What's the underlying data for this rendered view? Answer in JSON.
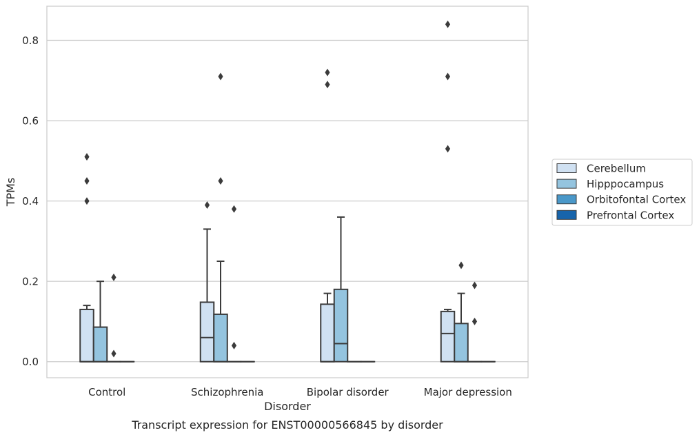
{
  "chart_data": {
    "type": "box",
    "title": "",
    "caption": "Transcript expression for ENST00000566845 by disorder",
    "xlabel": "Disorder",
    "ylabel": "TPMs",
    "ylim": [
      -0.04,
      0.885
    ],
    "yticks": [
      0.0,
      0.2,
      0.4,
      0.6,
      0.8
    ],
    "ytick_labels": [
      "0.0",
      "0.2",
      "0.4",
      "0.6",
      "0.8"
    ],
    "grid": true,
    "legend_position": "right",
    "categories": [
      "Control",
      "Schizophrenia",
      "Bipolar disorder",
      "Major depression"
    ],
    "series": [
      {
        "name": "Cerebellum",
        "color": "#d0e1f2",
        "boxes": [
          {
            "min": 0.0,
            "q1": 0.0,
            "median": 0.0,
            "q3": 0.13,
            "max": 0.14,
            "outliers": [
              0.4,
              0.45,
              0.51
            ]
          },
          {
            "min": 0.0,
            "q1": 0.0,
            "median": 0.06,
            "q3": 0.148,
            "max": 0.33,
            "outliers": [
              0.39
            ]
          },
          {
            "min": 0.0,
            "q1": 0.0,
            "median": 0.0,
            "q3": 0.143,
            "max": 0.17,
            "outliers": [
              0.69,
              0.72
            ]
          },
          {
            "min": 0.0,
            "q1": 0.0,
            "median": 0.07,
            "q3": 0.125,
            "max": 0.13,
            "outliers": [
              0.53,
              0.71,
              0.84
            ]
          }
        ]
      },
      {
        "name": "Hipppocampus",
        "color": "#94c4df",
        "boxes": [
          {
            "min": 0.0,
            "q1": 0.0,
            "median": 0.0,
            "q3": 0.086,
            "max": 0.2,
            "outliers": []
          },
          {
            "min": 0.0,
            "q1": 0.0,
            "median": 0.0,
            "q3": 0.118,
            "max": 0.25,
            "outliers": [
              0.45,
              0.71
            ]
          },
          {
            "min": 0.0,
            "q1": 0.0,
            "median": 0.045,
            "q3": 0.18,
            "max": 0.36,
            "outliers": []
          },
          {
            "min": 0.0,
            "q1": 0.0,
            "median": 0.0,
            "q3": 0.095,
            "max": 0.17,
            "outliers": [
              0.24
            ]
          }
        ]
      },
      {
        "name": "Orbitofontal Cortex",
        "color": "#4a98c9",
        "boxes": [
          {
            "min": 0.0,
            "q1": 0.0,
            "median": 0.0,
            "q3": 0.0,
            "max": 0.0,
            "outliers": [
              0.02,
              0.21
            ]
          },
          {
            "min": 0.0,
            "q1": 0.0,
            "median": 0.0,
            "q3": 0.0,
            "max": 0.0,
            "outliers": [
              0.04,
              0.38
            ]
          },
          {
            "min": 0.0,
            "q1": 0.0,
            "median": 0.0,
            "q3": 0.0,
            "max": 0.0,
            "outliers": []
          },
          {
            "min": 0.0,
            "q1": 0.0,
            "median": 0.0,
            "q3": 0.0,
            "max": 0.0,
            "outliers": [
              0.1,
              0.19
            ]
          }
        ]
      },
      {
        "name": "Prefrontal Cortex",
        "color": "#1764ab",
        "boxes": [
          {
            "min": 0.0,
            "q1": 0.0,
            "median": 0.0,
            "q3": 0.0,
            "max": 0.0,
            "outliers": []
          },
          {
            "min": 0.0,
            "q1": 0.0,
            "median": 0.0,
            "q3": 0.0,
            "max": 0.0,
            "outliers": []
          },
          {
            "min": 0.0,
            "q1": 0.0,
            "median": 0.0,
            "q3": 0.0,
            "max": 0.0,
            "outliers": []
          },
          {
            "min": 0.0,
            "q1": 0.0,
            "median": 0.0,
            "q3": 0.0,
            "max": 0.0,
            "outliers": []
          }
        ]
      }
    ]
  }
}
